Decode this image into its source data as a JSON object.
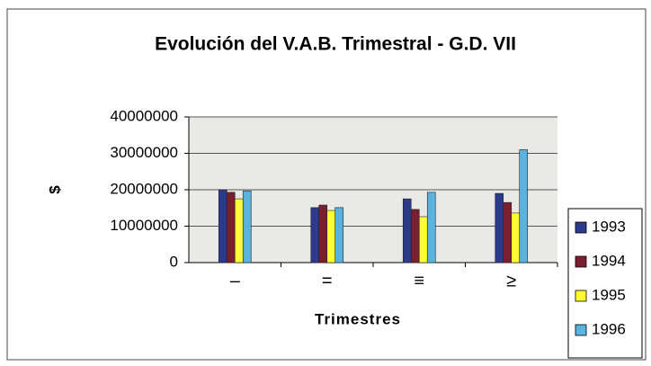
{
  "chart_data": {
    "type": "bar",
    "title": "Evolución del V.A.B. Trimestral - G.D. VII",
    "x_label": "Trimestres",
    "y_label": "$",
    "categories": [
      "–",
      "=",
      "≡",
      "≥"
    ],
    "series": [
      {
        "name": "1993",
        "color": "#2c3a8c",
        "values": [
          20000000,
          15100000,
          17500000,
          19000000
        ]
      },
      {
        "name": "1994",
        "color": "#7a1f30",
        "values": [
          19300000,
          15800000,
          14600000,
          16500000
        ]
      },
      {
        "name": "1995",
        "color": "#ffff33",
        "values": [
          17500000,
          14300000,
          12600000,
          13600000
        ]
      },
      {
        "name": "1996",
        "color": "#5ab2de",
        "values": [
          19700000,
          15100000,
          19300000,
          31000000
        ]
      }
    ],
    "ylim": [
      0,
      40000000
    ],
    "yticks": [
      0,
      10000000,
      20000000,
      30000000,
      40000000
    ],
    "grid": true,
    "legend": "right"
  }
}
